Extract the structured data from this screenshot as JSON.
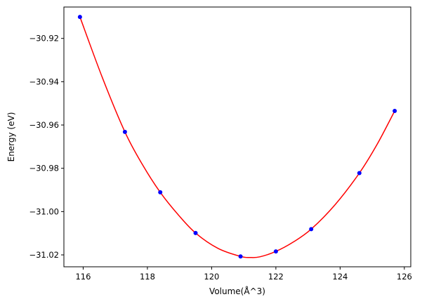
{
  "chart_data": {
    "type": "scatter",
    "title": "",
    "xlabel": "Volume(Å^3)",
    "ylabel": "Energy (eV)",
    "xlim": [
      115.4,
      126.2
    ],
    "ylim": [
      -31.0255,
      -30.9055
    ],
    "xticks": [
      116,
      118,
      120,
      122,
      124,
      126
    ],
    "xtick_labels": [
      "116",
      "118",
      "120",
      "122",
      "124",
      "126"
    ],
    "yticks": [
      -30.92,
      -30.94,
      -30.96,
      -30.98,
      -31.0,
      -31.02
    ],
    "ytick_labels": [
      "−30.92",
      "−30.94",
      "−30.96",
      "−30.98",
      "−31.00",
      "−31.02"
    ],
    "grid": false,
    "series": [
      {
        "kind": "points",
        "color": "#0000ff",
        "x": [
          115.9,
          117.3,
          118.4,
          119.5,
          120.9,
          122.0,
          123.1,
          124.6,
          125.7
        ],
        "y": [
          -30.9101,
          -30.9632,
          -30.9911,
          -31.0099,
          -31.0207,
          -31.0184,
          -31.0081,
          -30.9822,
          -30.9535
        ]
      },
      {
        "kind": "fit-curve",
        "color": "#ff0000",
        "x": [
          115.9,
          116.6,
          117.3,
          117.85,
          118.4,
          118.95,
          119.5,
          120.2,
          120.9,
          121.2,
          121.5,
          122.0,
          122.55,
          123.1,
          123.85,
          124.6,
          125.15,
          125.7
        ],
        "y": [
          -30.9101,
          -30.9382,
          -30.9632,
          -30.9784,
          -30.9911,
          -31.0013,
          -31.0099,
          -31.017,
          -31.0207,
          -31.0212,
          -31.0209,
          -31.0184,
          -31.014,
          -31.0081,
          -30.9967,
          -30.9822,
          -30.969,
          -30.9535
        ]
      }
    ]
  }
}
